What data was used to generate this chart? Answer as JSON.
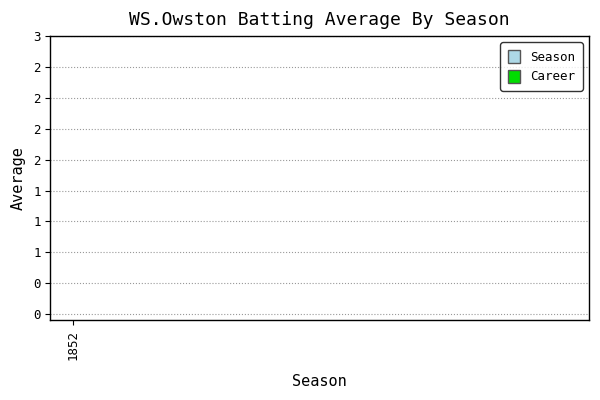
{
  "title": "WS.Owston Batting Average By Season",
  "xlabel": "Season",
  "ylabel": "Average",
  "xlim": [
    1851.6,
    1861.0
  ],
  "ylim": [
    -0.01,
    0.38
  ],
  "ytick_positions": [
    0.0,
    0.05,
    0.1,
    0.15,
    0.2,
    0.25,
    0.3,
    0.35,
    0.4,
    0.45
  ],
  "ytick_labels": [
    "0",
    "0",
    "1",
    "1",
    "1",
    "2",
    "2",
    "2",
    "2",
    "3"
  ],
  "xtick_positions": [
    1852
  ],
  "xtick_labels": [
    "1852"
  ],
  "season_color": "#add8e6",
  "career_color": "#00dd00",
  "plot_bg_color": "#ffffff",
  "fig_bg_color": "#ffffff",
  "grid_color": "#999999",
  "spine_color": "#000000",
  "legend_labels": [
    "Season",
    "Career"
  ],
  "title_fontsize": 13,
  "label_fontsize": 11,
  "tick_fontsize": 9
}
